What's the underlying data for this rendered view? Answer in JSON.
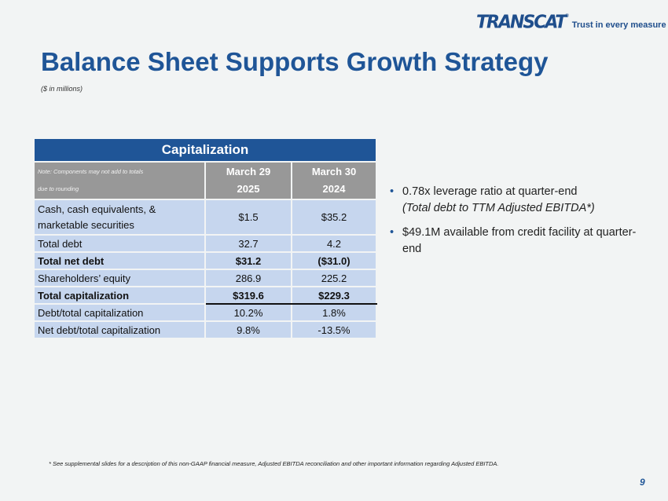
{
  "logo": {
    "brand": "TRANSCAT",
    "registered": "®",
    "tagline": "Trust in every measure"
  },
  "title": "Balance Sheet Supports Growth Strategy",
  "subtitle": "($ in millions)",
  "table": {
    "caption": "Capitalization",
    "note_line1": "Note: Components may not add to totals",
    "note_line2": "due to rounding",
    "columns": [
      {
        "line1": "March 29",
        "line2": "2025"
      },
      {
        "line1": "March 30",
        "line2": "2024"
      }
    ],
    "rows": [
      {
        "label": "Cash, cash equivalents, & marketable securities",
        "v1": "$1.5",
        "v2": "$35.2"
      },
      {
        "label": "Total debt",
        "v1": "32.7",
        "v2": "4.2"
      },
      {
        "label": "Total net debt",
        "v1": "$31.2",
        "v2": "($31.0)"
      },
      {
        "label": "Shareholders’ equity",
        "v1": "286.9",
        "v2": "225.2"
      },
      {
        "label": "Total capitalization",
        "v1": "$319.6",
        "v2": "$229.3"
      },
      {
        "label": "Debt/total capitalization",
        "v1": "10.2%",
        "v2": "1.8%"
      },
      {
        "label": "Net debt/total capitalization",
        "v1": "9.8%",
        "v2": "-13.5%"
      }
    ]
  },
  "bullets": [
    {
      "text": "0.78x leverage ratio at quarter-end",
      "italic": "(Total debt to TTM Adjusted EBITDA*)"
    },
    {
      "text": "$49.1M available from credit facility at quarter-end"
    }
  ],
  "footnote": "* See supplemental slides for a description of this non-GAAP financial measure, Adjusted EBITDA reconciliation and other important information regarding Adjusted EBITDA.",
  "page_number": "9",
  "colors": {
    "brand": "#1f5597",
    "table_cell": "#c6d6ee",
    "header_gray": "#989898"
  }
}
